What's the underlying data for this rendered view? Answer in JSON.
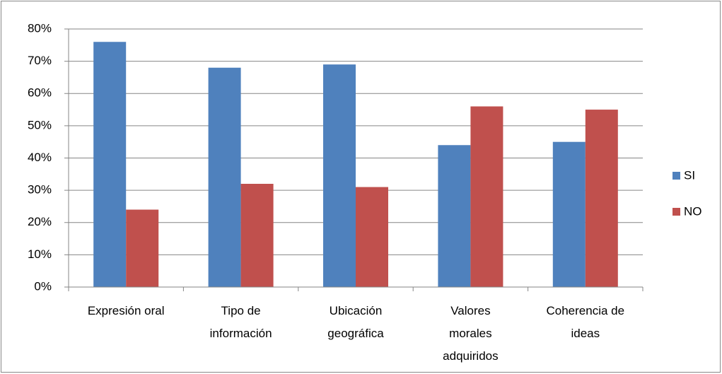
{
  "chart_data": {
    "type": "bar",
    "categories": [
      "Expresión oral",
      "Tipo de información",
      "Ubicación geográfica",
      "Valores morales adquiridos",
      "Coherencia de ideas"
    ],
    "series": [
      {
        "name": "SI",
        "color": "#4f81bd",
        "values": [
          76,
          68,
          69,
          44,
          45
        ]
      },
      {
        "name": "NO",
        "color": "#c0504d",
        "values": [
          24,
          32,
          31,
          56,
          55
        ]
      }
    ],
    "ylim": [
      0,
      80
    ],
    "yticks": [
      {
        "value": 0,
        "label": "0%"
      },
      {
        "value": 10,
        "label": "10%"
      },
      {
        "value": 20,
        "label": "20%"
      },
      {
        "value": 30,
        "label": "30%"
      },
      {
        "value": 40,
        "label": "40%"
      },
      {
        "value": 50,
        "label": "50%"
      },
      {
        "value": 60,
        "label": "60%"
      },
      {
        "value": 70,
        "label": "70%"
      },
      {
        "value": 80,
        "label": "80%"
      }
    ],
    "grid": true,
    "legend": "right"
  }
}
